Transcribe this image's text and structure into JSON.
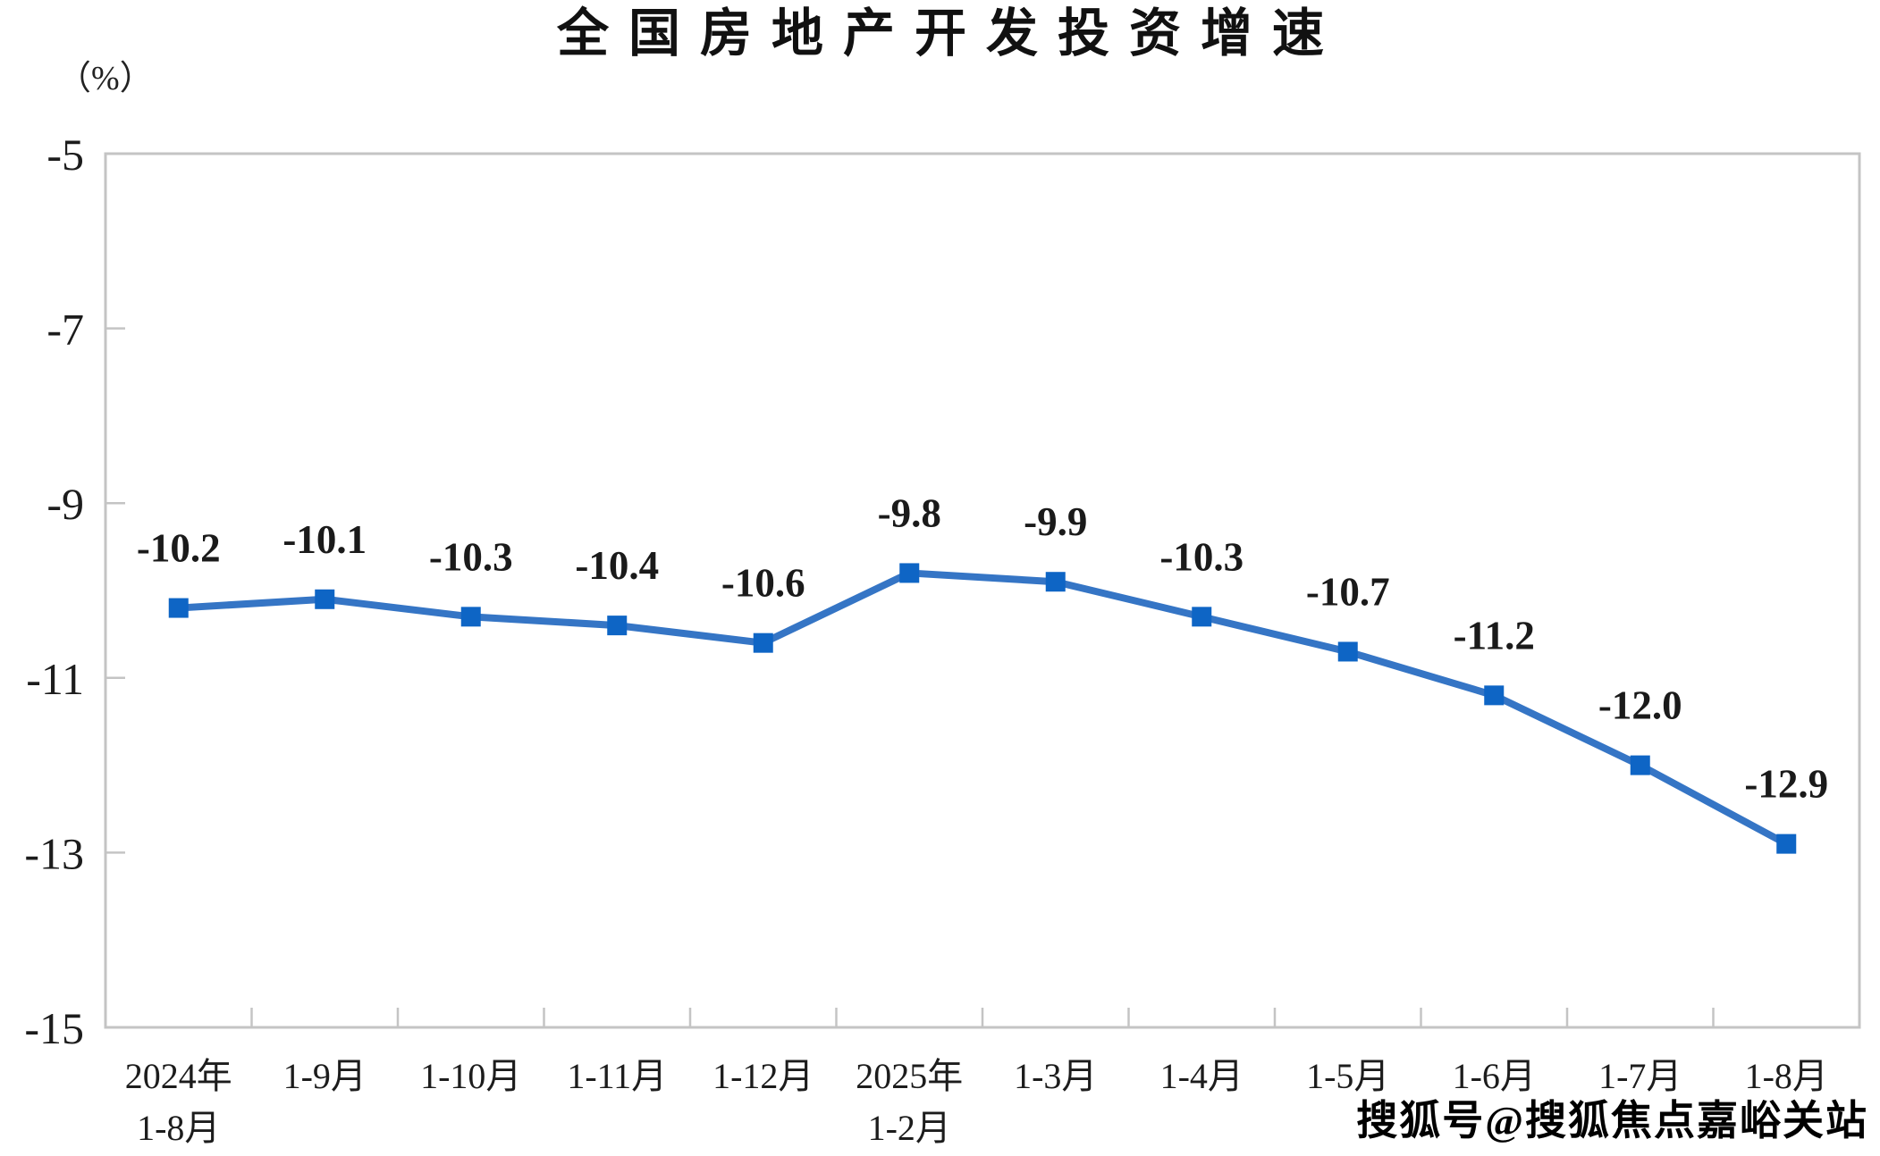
{
  "page": {
    "title": "全国房地产开发投资增速",
    "unit_label": "（%）",
    "watermark": "搜狐号@搜狐焦点嘉峪关站"
  },
  "chart_data": {
    "type": "line",
    "title": "全国房地产开发投资增速",
    "ylabel": "（%）",
    "categories": [
      [
        "2024年",
        "1-8月"
      ],
      [
        "1-9月"
      ],
      [
        "1-10月"
      ],
      [
        "1-11月"
      ],
      [
        "1-12月"
      ],
      [
        "2025年",
        "1-2月"
      ],
      [
        "1-3月"
      ],
      [
        "1-4月"
      ],
      [
        "1-5月"
      ],
      [
        "1-6月"
      ],
      [
        "1-7月"
      ],
      [
        "1-8月"
      ]
    ],
    "values": [
      -10.2,
      -10.1,
      -10.3,
      -10.4,
      -10.6,
      -9.8,
      -9.9,
      -10.3,
      -10.7,
      -11.2,
      -12.0,
      -12.9
    ],
    "data_labels": [
      "-10.2",
      "-10.1",
      "-10.3",
      "-10.4",
      "-10.6",
      "-9.8",
      "-9.9",
      "-10.3",
      "-10.7",
      "-11.2",
      "-12.0",
      "-12.9"
    ],
    "ylim": [
      -15,
      -5
    ],
    "yticks": [
      -5,
      -7,
      -9,
      -11,
      -13,
      -15
    ],
    "ytick_labels": [
      "-5",
      "-7",
      "-9",
      "-11",
      "-13",
      "-15"
    ],
    "grid": false,
    "legend": "none",
    "marker": "square",
    "colors": {
      "line": "#3575c5",
      "marker": "#0e65c5",
      "axis": "#c4c4c4",
      "text": "#1c1c1c"
    }
  }
}
